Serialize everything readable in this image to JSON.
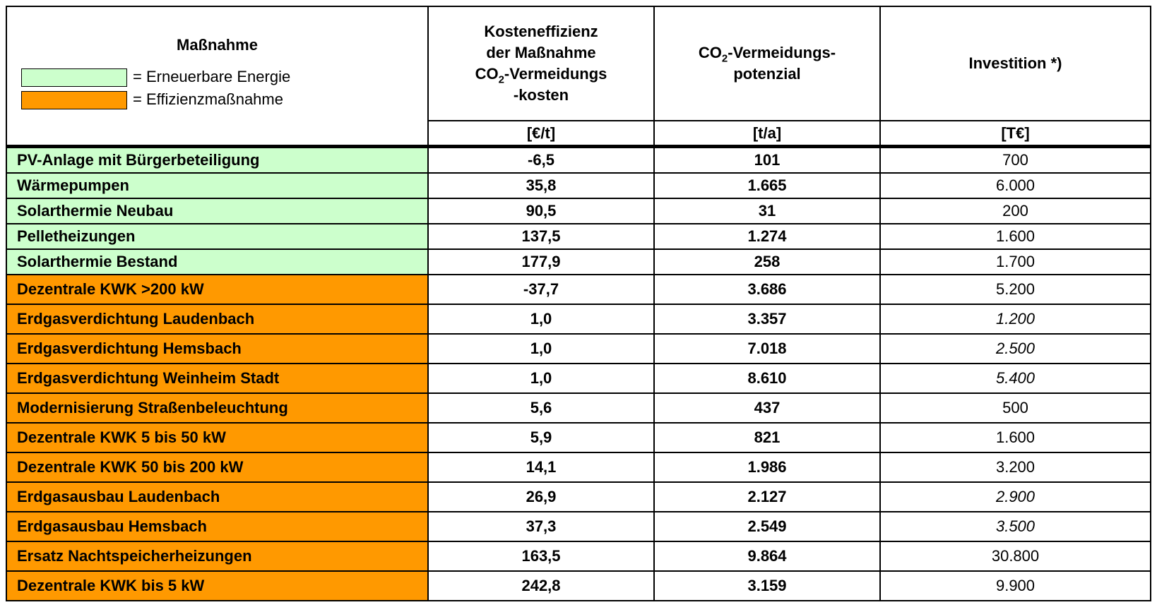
{
  "header": {
    "title": "Maßnahme",
    "legend": [
      {
        "label": "= Erneuerbare Energie",
        "color": "#ccffcc"
      },
      {
        "label": "= Effizienzmaßnahme",
        "color": "#ff9900"
      }
    ],
    "columns": [
      {
        "lines": [
          "Kosteneffizienz",
          "der Maßnahme",
          "CO",
          "2",
          "-Vermeidungs",
          "-kosten"
        ],
        "unit": "[€/t]"
      },
      {
        "lines": [
          "CO",
          "2",
          "-Vermeidungs-",
          "potenzial"
        ],
        "unit": "[t/a]"
      },
      {
        "lines": [
          "Investition *)"
        ],
        "unit": "[T€]"
      }
    ]
  },
  "table": {
    "rows": [
      {
        "name": "PV-Anlage mit Bürgerbeteiligung",
        "group": 0,
        "cost": "-6,5",
        "co2": "101",
        "invest": "700",
        "italic": false
      },
      {
        "name": "Wärmepumpen",
        "group": 0,
        "cost": "35,8",
        "co2": "1.665",
        "invest": "6.000",
        "italic": false
      },
      {
        "name": "Solarthermie Neubau",
        "group": 0,
        "cost": "90,5",
        "co2": "31",
        "invest": "200",
        "italic": false
      },
      {
        "name": "Pelletheizungen",
        "group": 0,
        "cost": "137,5",
        "co2": "1.274",
        "invest": "1.600",
        "italic": false
      },
      {
        "name": "Solarthermie Bestand",
        "group": 0,
        "cost": "177,9",
        "co2": "258",
        "invest": "1.700",
        "italic": false
      },
      {
        "name": "Dezentrale KWK >200 kW",
        "group": 1,
        "cost": "-37,7",
        "co2": "3.686",
        "invest": "5.200",
        "italic": false
      },
      {
        "name": "Erdgasverdichtung Laudenbach",
        "group": 1,
        "cost": "1,0",
        "co2": "3.357",
        "invest": "1.200",
        "italic": true
      },
      {
        "name": "Erdgasverdichtung Hemsbach",
        "group": 1,
        "cost": "1,0",
        "co2": "7.018",
        "invest": "2.500",
        "italic": true
      },
      {
        "name": "Erdgasverdichtung Weinheim Stadt",
        "group": 1,
        "cost": "1,0",
        "co2": "8.610",
        "invest": "5.400",
        "italic": true
      },
      {
        "name": "Modernisierung Straßenbeleuchtung",
        "group": 1,
        "cost": "5,6",
        "co2": "437",
        "invest": "500",
        "italic": false
      },
      {
        "name": "Dezentrale KWK 5 bis 50 kW",
        "group": 1,
        "cost": "5,9",
        "co2": "821",
        "invest": "1.600",
        "italic": false
      },
      {
        "name": "Dezentrale KWK  50 bis 200 kW",
        "group": 1,
        "cost": "14,1",
        "co2": "1.986",
        "invest": "3.200",
        "italic": false
      },
      {
        "name": "Erdgasausbau Laudenbach",
        "group": 1,
        "cost": "26,9",
        "co2": "2.127",
        "invest": "2.900",
        "italic": true
      },
      {
        "name": "Erdgasausbau Hemsbach",
        "group": 1,
        "cost": "37,3",
        "co2": "2.549",
        "invest": "3.500",
        "italic": true
      },
      {
        "name": "Ersatz Nachtspeicherheizungen",
        "group": 1,
        "cost": "163,5",
        "co2": "9.864",
        "invest": "30.800",
        "italic": false
      },
      {
        "name": "Dezentrale KWK bis 5 kW",
        "group": 1,
        "cost": "242,8",
        "co2": "3.159",
        "invest": "9.900",
        "italic": false
      }
    ]
  }
}
